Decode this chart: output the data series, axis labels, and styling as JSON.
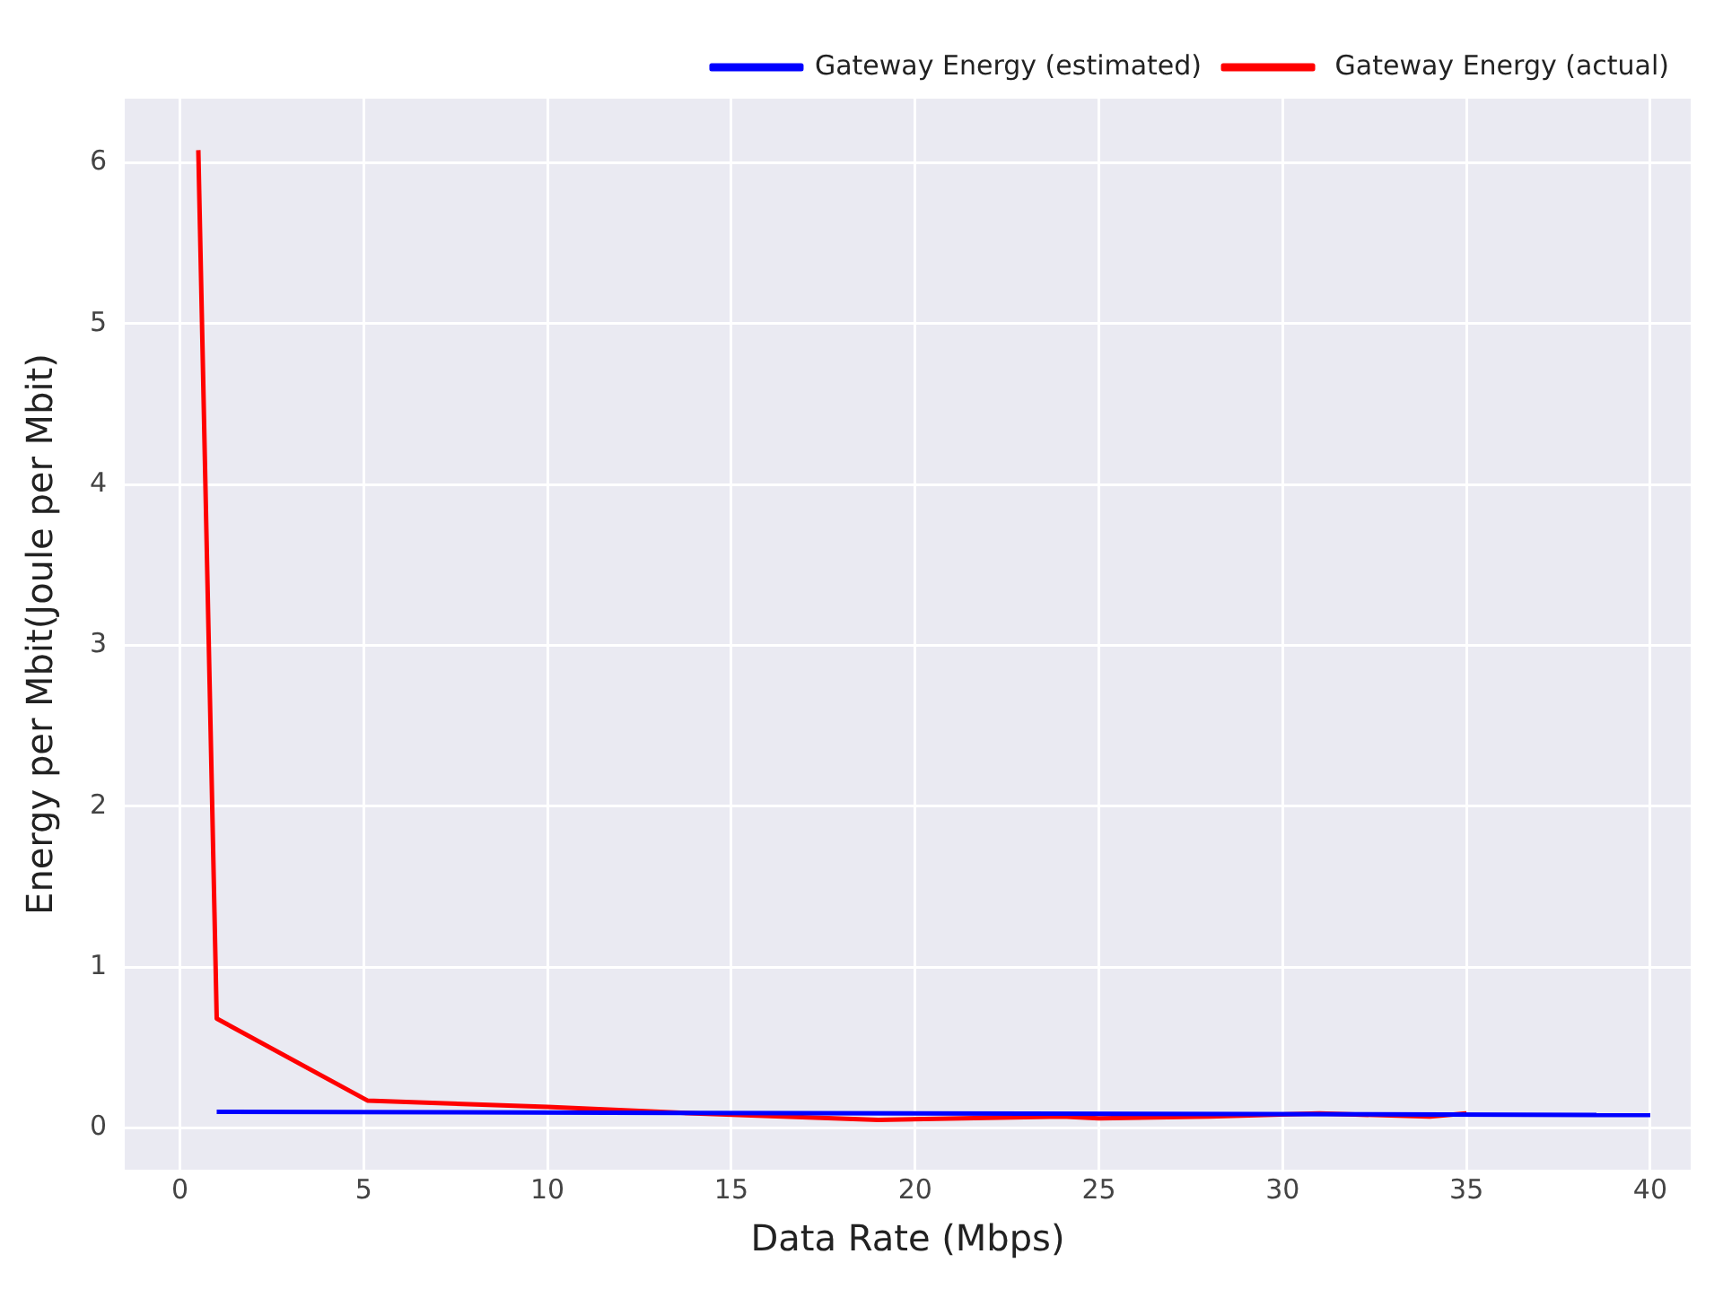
{
  "chart_data": {
    "type": "line",
    "xlabel": "Data Rate (Mbps)",
    "ylabel": "Energy per Mbit(Joule per Mbit)",
    "xlim": [
      -1.5,
      41.1
    ],
    "ylim": [
      -0.26,
      6.4
    ],
    "xticks": [
      0,
      5,
      10,
      15,
      20,
      25,
      30,
      35,
      40
    ],
    "yticks": [
      0,
      1,
      2,
      3,
      4,
      5,
      6
    ],
    "grid": true,
    "legend": "top right",
    "marker": "none",
    "line_style": "solid",
    "series": [
      {
        "name": "Gateway Energy (estimated)",
        "color": "#0000ff",
        "x": [
          1,
          40
        ],
        "values": [
          0.1,
          0.08
        ]
      },
      {
        "name": " Gateway Energy (actual)",
        "color": "#ff0000",
        "x": [
          0.5,
          1,
          5.1,
          10,
          14,
          19,
          24,
          25,
          28,
          31,
          34,
          35
        ],
        "values": [
          6.08,
          0.68,
          0.17,
          0.13,
          0.09,
          0.05,
          0.07,
          0.06,
          0.07,
          0.09,
          0.07,
          0.09
        ]
      }
    ]
  }
}
